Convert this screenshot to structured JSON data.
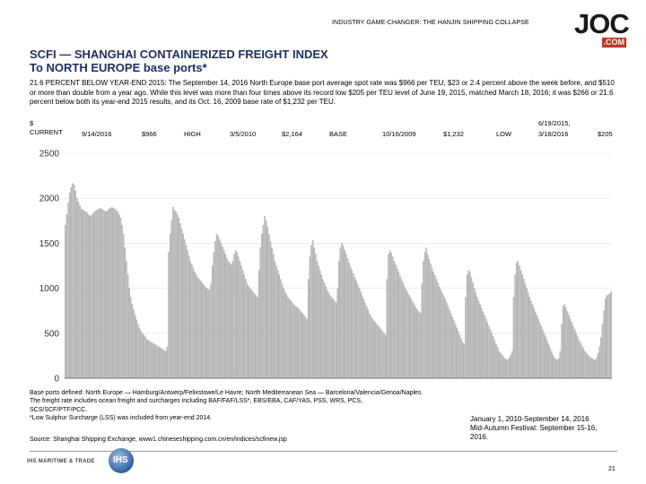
{
  "header": {
    "text": "INDUSTRY GAME-CHANGER: THE HANJIN SHIPPING COLLAPSE"
  },
  "logo": {
    "main": "JOC",
    "suffix": ".COM"
  },
  "title": {
    "line1": "SCFI — SHANGHAI CONTAINERIZED FREIGHT INDEX",
    "line2": "To NORTH EUROPE base ports*"
  },
  "description": "21.6 PERCENT BELOW YEAR-END 2015: The September 14, 2016 North Europe base port average spot rate was $966 per TEU, $23 or 2.4 percent above the week before, and $510 or more than double from a year ago. While this level was more than four times above its record low $205 per TEU level of June 19, 2015, matched March 18, 2016; it was $266 or 21.6 percent below both its year-end 2015 results, and its Oct. 16, 2009 base rate of $1,232 per TEU.",
  "stats": {
    "unit": "$",
    "current_label": "CURRENT",
    "current_date": "9/14/2016",
    "current_value": "$966",
    "high_label": "HIGH",
    "high_date": "3/5/2010",
    "high_value": "$2,164",
    "base_label": "BASE",
    "base_date": "10/16/2009",
    "base_value": "$1,232",
    "low_label": "LOW",
    "low_date_1": "6/19/2015,",
    "low_date_2": "3/18/2016",
    "low_value": "$205"
  },
  "notes": {
    "line1": "Base ports defined: North Europe — Hamburg/Antwerp/Felixstowe/Le Havre; North Mediterranean Sea — Barcelona/Valencia/Genoa/Naples.",
    "line2": "The freight rate includes ocean freight and surcharges including BAF/FAF/LSS*, EBS/EBA, CAF/YAS, PSS, WRS, PCS,",
    "line3": "SCS/SCF/PTF/PCC.",
    "line4": "*Low Sulphur Surcharge (LSS) was included from year-end 2014."
  },
  "side_note": {
    "line1": "January 1, 2010-September 14, 2016",
    "line2": "Mid-Autumn Festival: September 15-16, 2016."
  },
  "source": "Source: Shanghai Shipping Exchange, www1.chineseshipping.com.cn/en/indices/scfinew.jsp",
  "footer": {
    "brand": "IHS MARITIME & TRADE",
    "globe": "IHS",
    "page": "21"
  },
  "colors": {
    "bar": "#c4c4c4",
    "bar_edge": "#8a8a8a",
    "title": "#1d2f6c",
    "logo_red": "#d42d22"
  },
  "chart_data": {
    "type": "bar",
    "title": "SCFI to North Europe base ports",
    "xlabel": "",
    "ylabel": "$ per TEU",
    "ylim": [
      0,
      2500
    ],
    "yticks": [
      "0",
      "500",
      "1000",
      "1500",
      "2000",
      "2500"
    ],
    "period": "January 1, 2010 - September 14, 2016 (weekly)",
    "values": [
      1700,
      1820,
      1950,
      2060,
      2120,
      2164,
      2150,
      2080,
      2000,
      1960,
      1920,
      1880,
      1870,
      1860,
      1850,
      1840,
      1820,
      1800,
      1810,
      1830,
      1850,
      1860,
      1870,
      1880,
      1890,
      1880,
      1870,
      1860,
      1850,
      1860,
      1880,
      1890,
      1900,
      1890,
      1880,
      1870,
      1850,
      1820,
      1780,
      1700,
      1600,
      1450,
      1300,
      1150,
      1000,
      900,
      820,
      760,
      700,
      650,
      600,
      560,
      520,
      500,
      480,
      460,
      430,
      420,
      410,
      400,
      390,
      380,
      370,
      360,
      350,
      340,
      330,
      320,
      310,
      300,
      350,
      1400,
      1600,
      1750,
      1900,
      1870,
      1850,
      1820,
      1780,
      1720,
      1660,
      1600,
      1540,
      1480,
      1420,
      1360,
      1300,
      1260,
      1220,
      1180,
      1150,
      1120,
      1100,
      1080,
      1060,
      1040,
      1020,
      1000,
      990,
      980,
      1050,
      1250,
      1400,
      1520,
      1600,
      1580,
      1540,
      1500,
      1460,
      1420,
      1380,
      1340,
      1300,
      1280,
      1260,
      1300,
      1380,
      1420,
      1400,
      1350,
      1300,
      1250,
      1200,
      1150,
      1100,
      1050,
      1020,
      1000,
      980,
      960,
      940,
      920,
      900,
      1200,
      1450,
      1600,
      1700,
      1800,
      1750,
      1680,
      1600,
      1520,
      1450,
      1380,
      1300,
      1250,
      1200,
      1150,
      1100,
      1050,
      1000,
      960,
      930,
      900,
      880,
      860,
      840,
      820,
      800,
      790,
      780,
      760,
      740,
      720,
      700,
      680,
      660,
      1100,
      1350,
      1480,
      1530,
      1450,
      1380,
      1300,
      1250,
      1200,
      1150,
      1100,
      1060,
      1020,
      980,
      950,
      920,
      900,
      880,
      860,
      840,
      1000,
      1300,
      1450,
      1500,
      1470,
      1420,
      1380,
      1330,
      1280,
      1240,
      1200,
      1160,
      1120,
      1080,
      1040,
      1000,
      960,
      920,
      880,
      840,
      800,
      760,
      720,
      690,
      660,
      640,
      620,
      600,
      580,
      560,
      540,
      520,
      500,
      480,
      1100,
      1380,
      1420,
      1390,
      1350,
      1300,
      1260,
      1220,
      1180,
      1140,
      1100,
      1060,
      1020,
      990,
      960,
      930,
      900,
      870,
      840,
      810,
      780,
      760,
      740,
      720,
      1050,
      1300,
      1400,
      1450,
      1380,
      1320,
      1270,
      1220,
      1180,
      1140,
      1100,
      1060,
      1020,
      980,
      950,
      920,
      880,
      840,
      800,
      760,
      720,
      680,
      640,
      600,
      560,
      520,
      480,
      440,
      400,
      380,
      900,
      1150,
      1200,
      1180,
      1120,
      1060,
      1000,
      950,
      900,
      860,
      820,
      780,
      740,
      700,
      660,
      620,
      580,
      540,
      500,
      460,
      420,
      380,
      340,
      300,
      280,
      260,
      240,
      220,
      210,
      205,
      230,
      260,
      300,
      900,
      1150,
      1280,
      1300,
      1250,
      1200,
      1150,
      1100,
      1050,
      1000,
      950,
      900,
      860,
      820,
      780,
      740,
      700,
      660,
      620,
      580,
      540,
      500,
      460,
      420,
      380,
      340,
      300,
      260,
      230,
      210,
      205,
      220,
      300,
      600,
      800,
      820,
      780,
      740,
      700,
      660,
      620,
      580,
      540,
      500,
      460,
      420,
      390,
      360,
      330,
      300,
      280,
      260,
      240,
      230,
      220,
      210,
      205,
      230,
      280,
      350,
      450,
      600,
      750,
      880,
      920,
      930,
      940,
      966
    ]
  }
}
